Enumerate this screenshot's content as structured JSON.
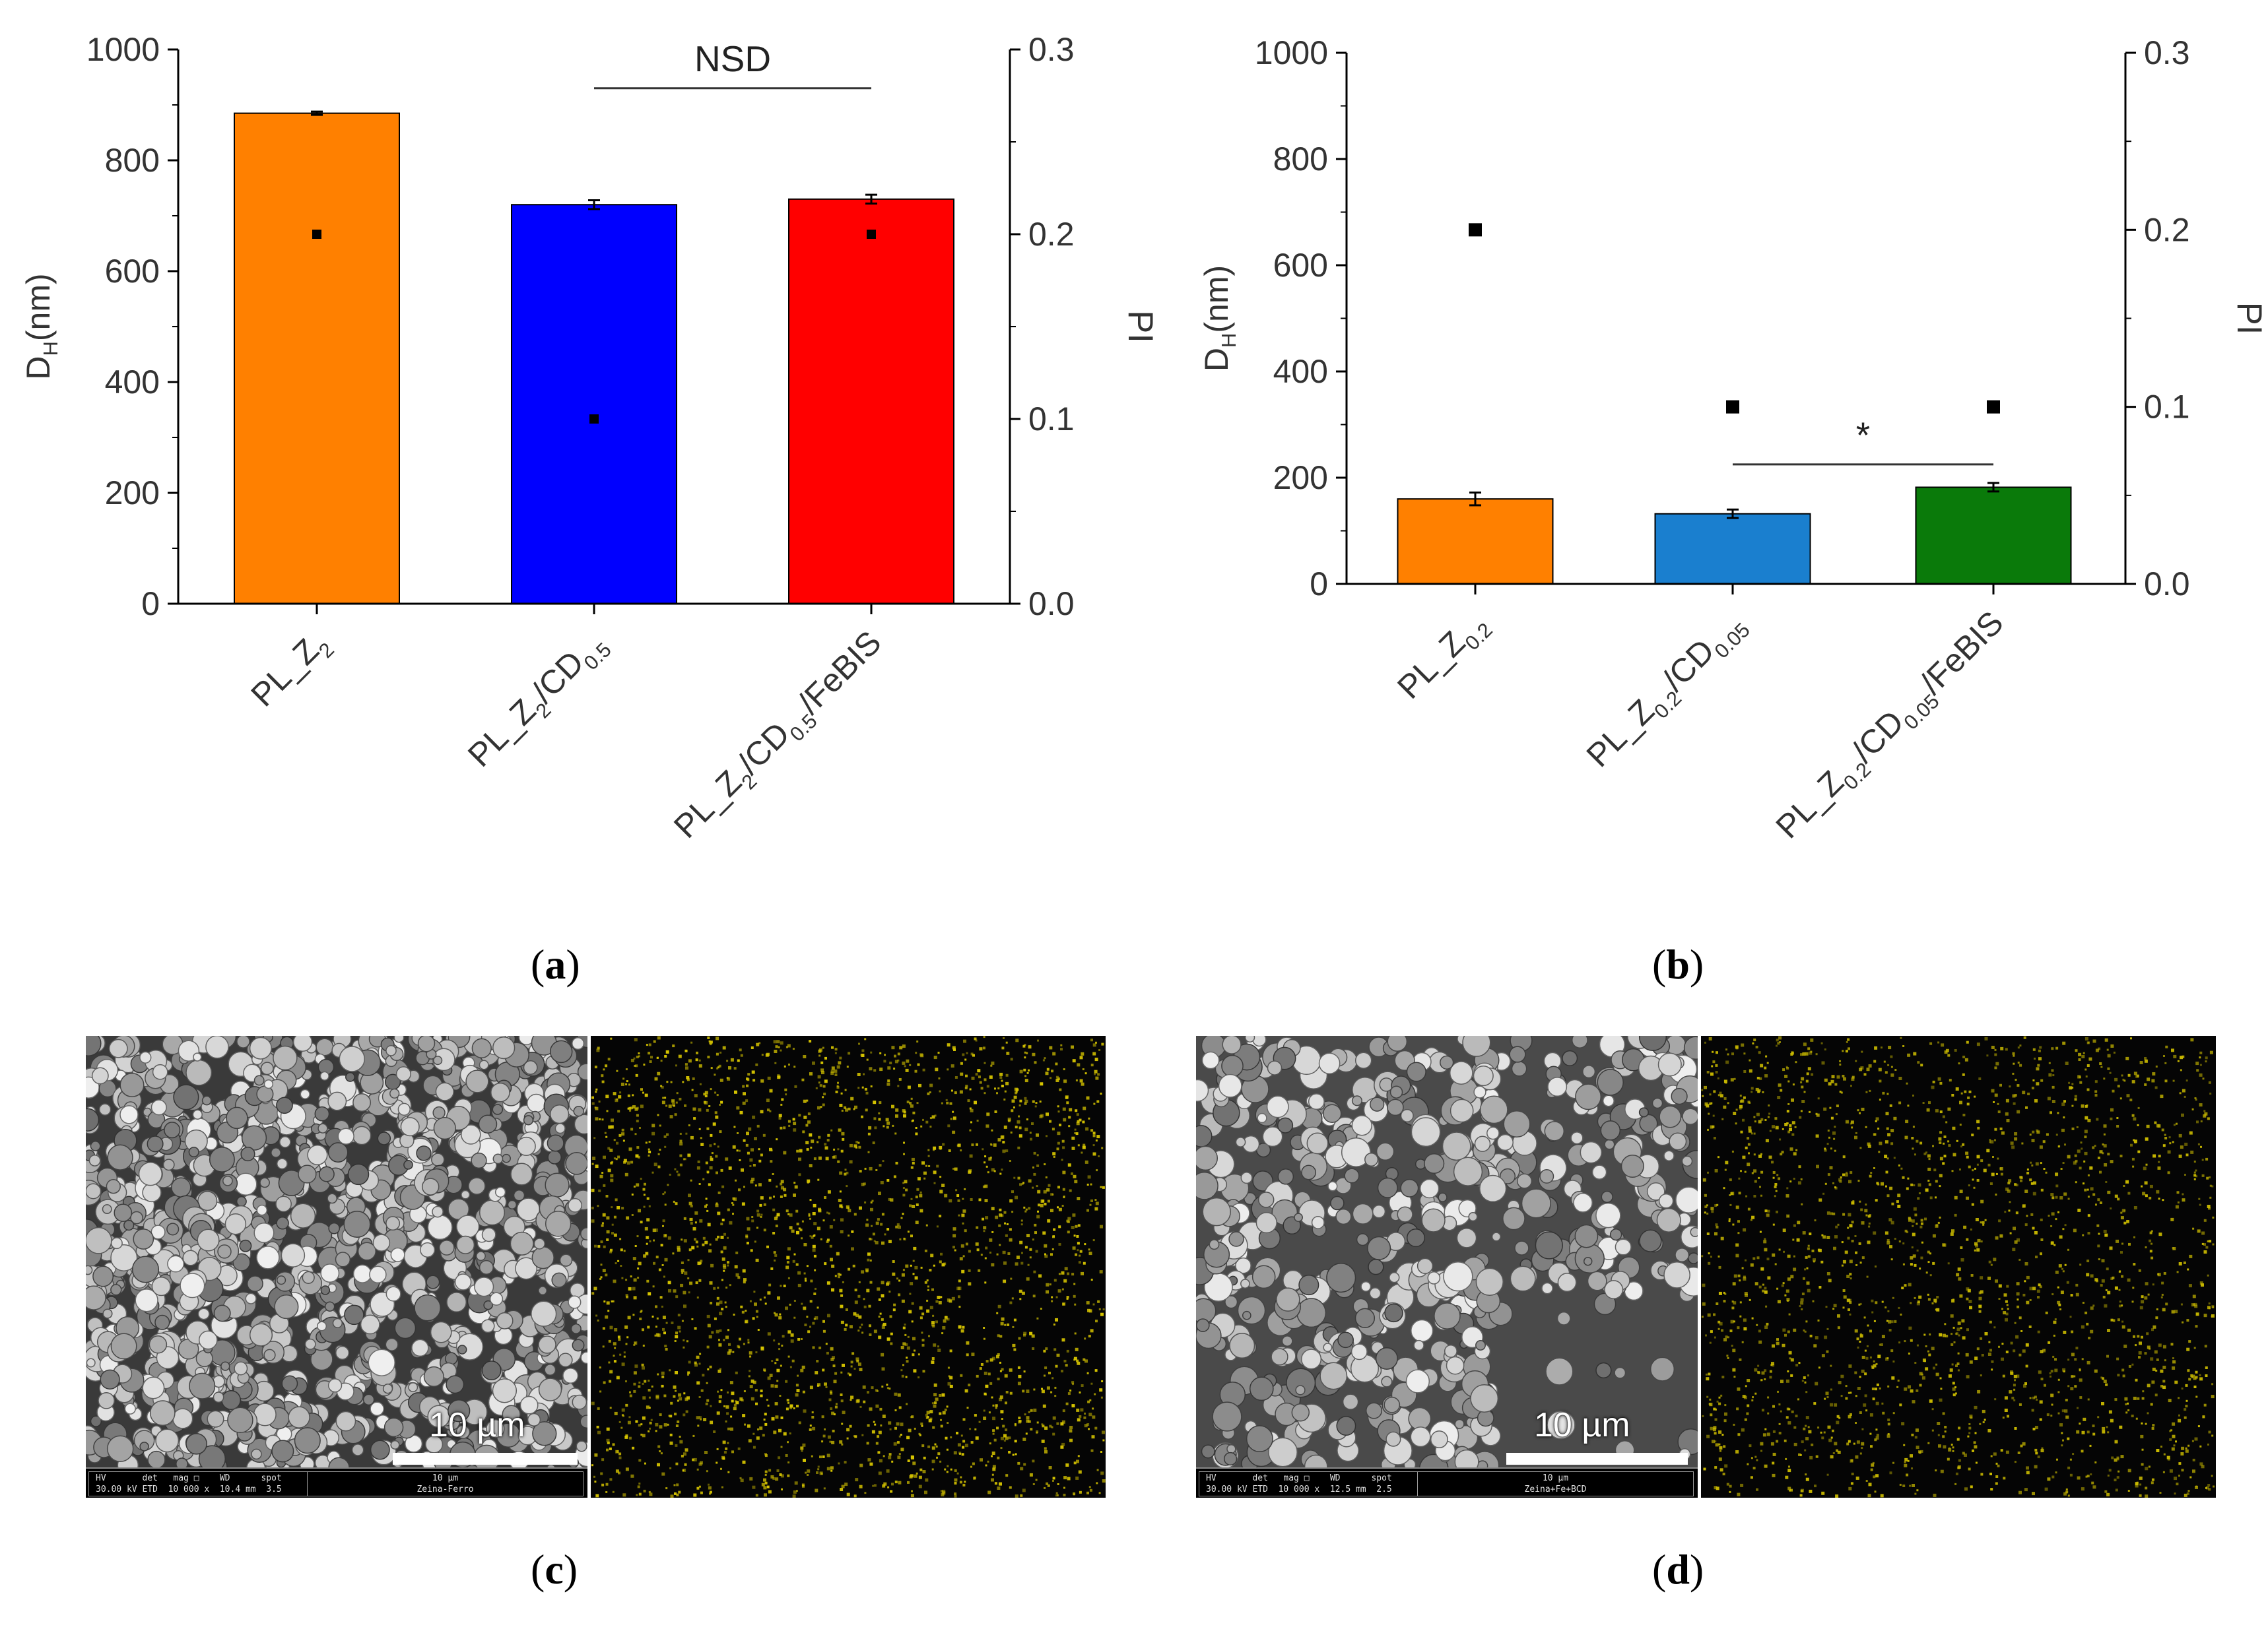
{
  "captions": {
    "a": "a",
    "b": "b",
    "c": "c",
    "d": "d"
  },
  "chart_data": [
    {
      "type": "bar",
      "panel": "a",
      "ylabel_main": "D",
      "ylabel_sub": "H",
      "ylabel_rest": "(nm)",
      "y2label": "PI",
      "ylim": [
        0,
        1000
      ],
      "y2lim": [
        0,
        0.3
      ],
      "yticks": [
        "0",
        "200",
        "400",
        "600",
        "800",
        "1000"
      ],
      "y2ticks": [
        "0.0",
        "0.1",
        "0.2",
        "0.3"
      ],
      "categories": [
        {
          "parts": [
            [
              "PL_Z",
              ""
            ],
            [
              "2",
              "sub"
            ]
          ]
        },
        {
          "parts": [
            [
              "PL_Z",
              ""
            ],
            [
              "2",
              "sub"
            ],
            [
              "/CD",
              ""
            ],
            [
              "0.5",
              "sub"
            ]
          ]
        },
        {
          "parts": [
            [
              "PL_Z",
              ""
            ],
            [
              "2",
              "sub"
            ],
            [
              "/CD",
              ""
            ],
            [
              "0.5",
              "sub"
            ],
            [
              "/FeBIS",
              ""
            ]
          ]
        }
      ],
      "series": [
        {
          "name": "DH (nm)",
          "axis": "left",
          "values": [
            885,
            720,
            730
          ],
          "errors": [
            3,
            8,
            8
          ]
        },
        {
          "name": "PI",
          "axis": "right",
          "values": [
            0.2,
            0.1,
            0.2
          ]
        }
      ],
      "colors": [
        "#ff8000",
        "#0000ff",
        "#ff0000"
      ],
      "annotation": {
        "text": "NSD",
        "from": 1,
        "to": 2,
        "y": 930
      }
    },
    {
      "type": "bar",
      "panel": "b",
      "ylabel_main": "D",
      "ylabel_sub": "H",
      "ylabel_rest": "(nm)",
      "y2label": "PI",
      "ylim": [
        0,
        1000
      ],
      "y2lim": [
        0,
        0.3
      ],
      "yticks": [
        "0",
        "200",
        "400",
        "600",
        "800",
        "1000"
      ],
      "y2ticks": [
        "0.0",
        "0.1",
        "0.2",
        "0.3"
      ],
      "categories": [
        {
          "parts": [
            [
              "PL_Z",
              ""
            ],
            [
              "0.2",
              "sub"
            ]
          ]
        },
        {
          "parts": [
            [
              "PL_Z",
              ""
            ],
            [
              "0.2",
              "sub"
            ],
            [
              "/CD",
              ""
            ],
            [
              "0.05",
              "sub"
            ]
          ]
        },
        {
          "parts": [
            [
              "PL_Z",
              ""
            ],
            [
              "0.2",
              "sub"
            ],
            [
              "/CD",
              ""
            ],
            [
              "0.05",
              "sub"
            ],
            [
              "/FeBIS",
              ""
            ]
          ]
        }
      ],
      "series": [
        {
          "name": "DH (nm)",
          "axis": "left",
          "values": [
            160,
            132,
            182
          ],
          "errors": [
            12,
            8,
            8
          ]
        },
        {
          "name": "PI",
          "axis": "right",
          "values": [
            0.2,
            0.1,
            0.1
          ]
        }
      ],
      "colors": [
        "#ff8000",
        "#1a7fcf",
        "#0a7a0a"
      ],
      "annotation": {
        "text": "*",
        "from": 1,
        "to": 2,
        "y": 225
      }
    }
  ],
  "micrographs": {
    "c": {
      "scale_label": "10 µm",
      "databar_line1": "HV       det   mag □    WD      spot",
      "databar_line2": "30.00 kV ETD  10 000 x  10.4 mm  3.5",
      "databar_scale": "10 µm",
      "databar_sample": "Zeina-Ferro",
      "eds_color": "#d6c400"
    },
    "d": {
      "scale_label": "10 µm",
      "databar_line1": "HV       det   mag □    WD      spot",
      "databar_line2": "30.00 kV ETD  10 000 x  12.5 mm  2.5",
      "databar_scale": "10 µm",
      "databar_sample": "Zeina+Fe+BCD",
      "eds_color": "#c8b800"
    }
  }
}
